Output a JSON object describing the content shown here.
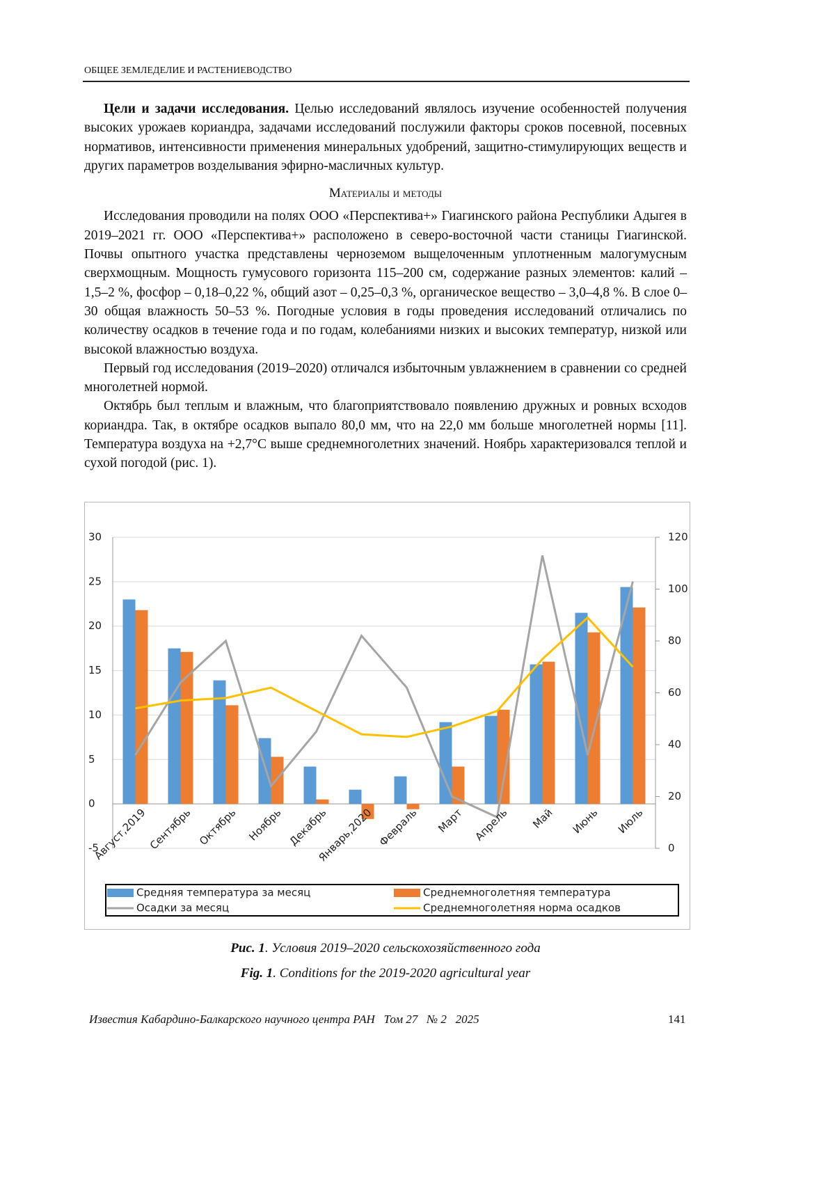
{
  "header": {
    "section": "ОБЩЕЕ ЗЕМЛЕДЕЛИЕ И РАСТЕНИЕВОДСТВО"
  },
  "body": {
    "goals": {
      "lead": "Цели и задачи исследования.",
      "text": " Целью исследований являлось изучение особенностей получения высоких урожаев кориандра, задачами исследований послужили факторы сроков посевной, посевных нормативов, интенсивности применения минеральных удобрений, защитно-стимулирующих веществ и других параметров возделывания эфирно-масличных культур."
    },
    "heading": "Материалы и методы",
    "paragraphs": [
      "Исследования проводили на полях ООО «Перспектива+» Гиагинского района Республики Адыгея в 2019–2021 гг. ООО «Перспектива+» расположено в северо-восточной части станицы Гиагинской. Почвы опытного участка представлены черноземом выщелоченным уплотненным малогумусным сверхмощным. Мощность гумусового горизонта 115–200 см, содержание разных элементов: калий – 1,5–2 %, фосфор – 0,18–0,22 %, общий азот – 0,25–0,3 %, органическое вещество – 3,0–4,8 %. В слое 0–30 общая влажность 50–53 %. Погодные условия в годы проведения исследований отличались по количеству осадков в течение года и по годам, колебаниями низких и высоких температур, низкой или высокой влажностью воздуха.",
      "Первый год исследования (2019–2020) отличался избыточным увлажнением в сравнении со средней многолетней нормой.",
      "Октябрь был теплым и влажным, что благоприятствовало появлению дружных и ровных всходов кориандра. Так, в октябре осадков выпало 80,0 мм, что на 22,0 мм больше многолетней нормы [11]. Температура воздуха на +2,7°C выше среднемноголетних значений. Ноябрь характеризовался теплой и сухой погодой (рис. 1)."
    ]
  },
  "chart_data": {
    "type": "combo",
    "categories": [
      "Август,2019",
      "Сентябрь",
      "Октябрь",
      "Ноябрь",
      "Декабрь",
      "Январь,2020",
      "Февраль",
      "Март",
      "Апрель",
      "Май",
      "Июнь",
      "Июль"
    ],
    "series": [
      {
        "name": "Средняя температура за месяц",
        "type": "bar",
        "color": "#5b9bd5",
        "values": [
          23.0,
          17.5,
          13.9,
          7.4,
          4.2,
          1.6,
          3.1,
          9.2,
          9.9,
          15.7,
          21.5,
          24.4
        ]
      },
      {
        "name": "Среднемноголетняя температура",
        "type": "bar",
        "color": "#ed7d31",
        "values": [
          21.8,
          17.1,
          11.1,
          5.3,
          0.5,
          -1.7,
          -0.6,
          4.2,
          10.6,
          16.0,
          19.3,
          22.1
        ]
      },
      {
        "name": "Осадки за месяц",
        "type": "line",
        "axis": "y2",
        "color": "#a5a5a5",
        "values": [
          36,
          64,
          80,
          24,
          45,
          82,
          62,
          20,
          12,
          113,
          36,
          103
        ]
      },
      {
        "name": "Среднемноголетняя норма осадков",
        "type": "line",
        "axis": "y2",
        "color": "#ffc000",
        "values": [
          54,
          57,
          58,
          62,
          53,
          44,
          43,
          47,
          53,
          73,
          89,
          70
        ]
      }
    ],
    "ylim": [
      -5,
      30
    ],
    "yticks": [
      -5,
      0,
      5,
      10,
      15,
      20,
      25,
      30
    ],
    "y2lim": [
      0,
      120
    ],
    "y2ticks": [
      0,
      20,
      40,
      60,
      80,
      100,
      120
    ],
    "grid": true
  },
  "caption": {
    "ru_label": "Рис. 1",
    "ru_text": ". Условия 2019–2020 сельскохозяйственного года",
    "en_label": "Fig. 1",
    "en_text": ". Conditions for the 2019-2020 agricultural year"
  },
  "footer": {
    "journal": "Известия Кабардино-Балкарского научного центра РАН   Том 27   № 2   2025",
    "page": "141"
  }
}
